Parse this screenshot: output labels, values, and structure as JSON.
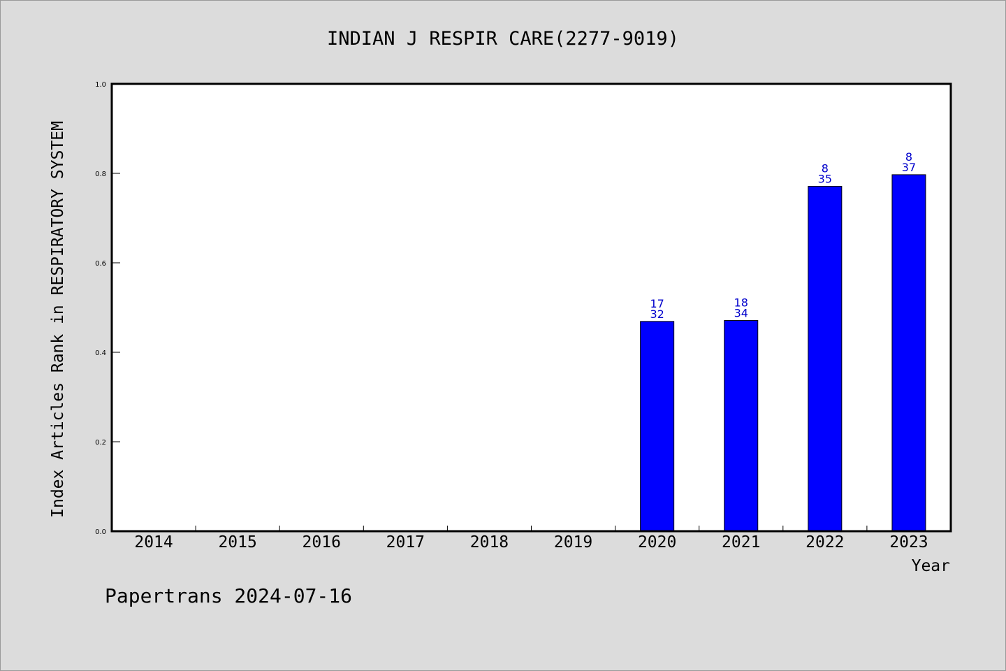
{
  "chart_data": {
    "type": "bar",
    "title": "INDIAN J RESPIR CARE(2277-9019)",
    "xlabel": "Year",
    "ylabel": "Index Articles Rank in RESPIRATORY SYSTEM",
    "categories": [
      "2014",
      "2015",
      "2016",
      "2017",
      "2018",
      "2019",
      "2020",
      "2021",
      "2022",
      "2023"
    ],
    "values": [
      null,
      null,
      null,
      null,
      null,
      null,
      0.469,
      0.471,
      0.771,
      0.797
    ],
    "label_top": [
      "",
      "",
      "",
      "",
      "",
      "",
      "17",
      "18",
      "8",
      "8"
    ],
    "label_bottom": [
      "",
      "",
      "",
      "",
      "",
      "",
      "32",
      "34",
      "35",
      "37"
    ],
    "yticks": [
      "0.0",
      "0.2",
      "0.4",
      "0.6",
      "0.8",
      "1.0"
    ],
    "ylim": [
      0,
      1
    ],
    "grid": false,
    "bar_color": "#0000ff",
    "label_color": "#0000cc"
  },
  "footer": {
    "text": "Papertrans 2024-07-16"
  },
  "colors": {
    "background": "#dcdcdc",
    "plot_background": "#ffffff"
  }
}
